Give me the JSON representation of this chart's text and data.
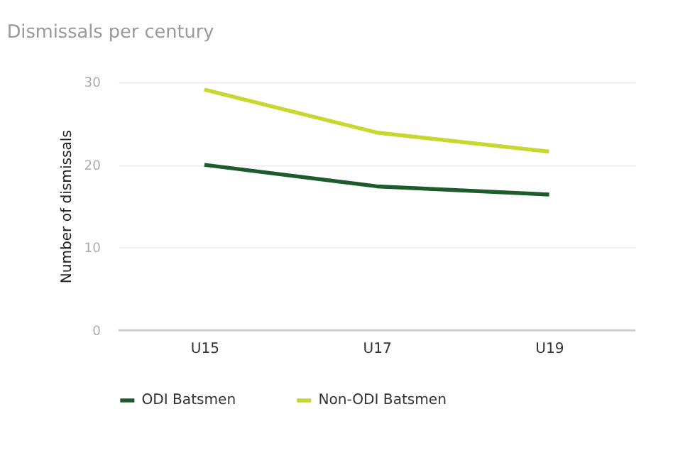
{
  "chart_data": {
    "type": "line",
    "title": "Dismissals per century",
    "ylabel": "Number of dismissals",
    "categories": [
      "U15",
      "U17",
      "U19"
    ],
    "series": [
      {
        "name": "ODI Batsmen",
        "color": "#1e5b2a",
        "values": [
          20.0,
          17.4,
          16.4
        ]
      },
      {
        "name": "Non-ODI Batsmen",
        "color": "#c8d62e",
        "values": [
          29.1,
          23.9,
          21.6
        ]
      }
    ],
    "ylim": [
      0,
      30
    ],
    "yticks": [
      0,
      10,
      20,
      30
    ],
    "grid": "y",
    "legend": "bottom left",
    "marker": "none",
    "line_style": "solid"
  }
}
